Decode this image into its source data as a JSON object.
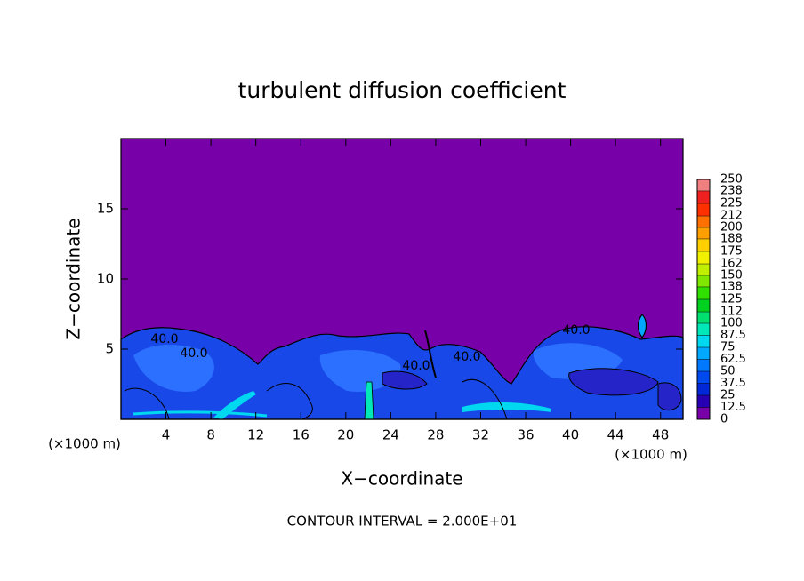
{
  "chart_data": {
    "type": "contour",
    "title": "turbulent diffusion coefficient",
    "x_label": "X−coordinate",
    "y_label": "Z−coordinate",
    "x_unit_label": "(×1000 m)",
    "y_unit_label": "(×1000 m)",
    "footnote": "CONTOUR INTERVAL = 2.000E+01",
    "contour_labels": [
      "40.0",
      "40.0",
      "40.0",
      "40.0",
      "40.0"
    ],
    "xlim": [
      0,
      50
    ],
    "xticks": [
      4,
      8,
      12,
      16,
      20,
      24,
      28,
      32,
      36,
      40,
      44,
      48
    ],
    "ylim": [
      0,
      20
    ],
    "yticks": [
      5,
      10,
      15
    ],
    "colorbar": {
      "lim": [
        0,
        250
      ],
      "ticks": [
        0,
        12.5,
        25,
        37.5,
        50,
        62.5,
        75,
        87.5,
        100,
        112,
        125,
        138,
        150,
        162,
        175,
        188,
        200,
        212,
        225,
        238,
        250
      ],
      "colors": [
        "#7800a8",
        "#2800b4",
        "#0028d8",
        "#0048f0",
        "#0078ff",
        "#00a8ff",
        "#00d8f0",
        "#00e8b8",
        "#00e070",
        "#00d020",
        "#30e000",
        "#80e800",
        "#c0f000",
        "#f0f000",
        "#ffd000",
        "#ffa000",
        "#ff7000",
        "#ff3000",
        "#f02020",
        "#f08080"
      ]
    }
  }
}
